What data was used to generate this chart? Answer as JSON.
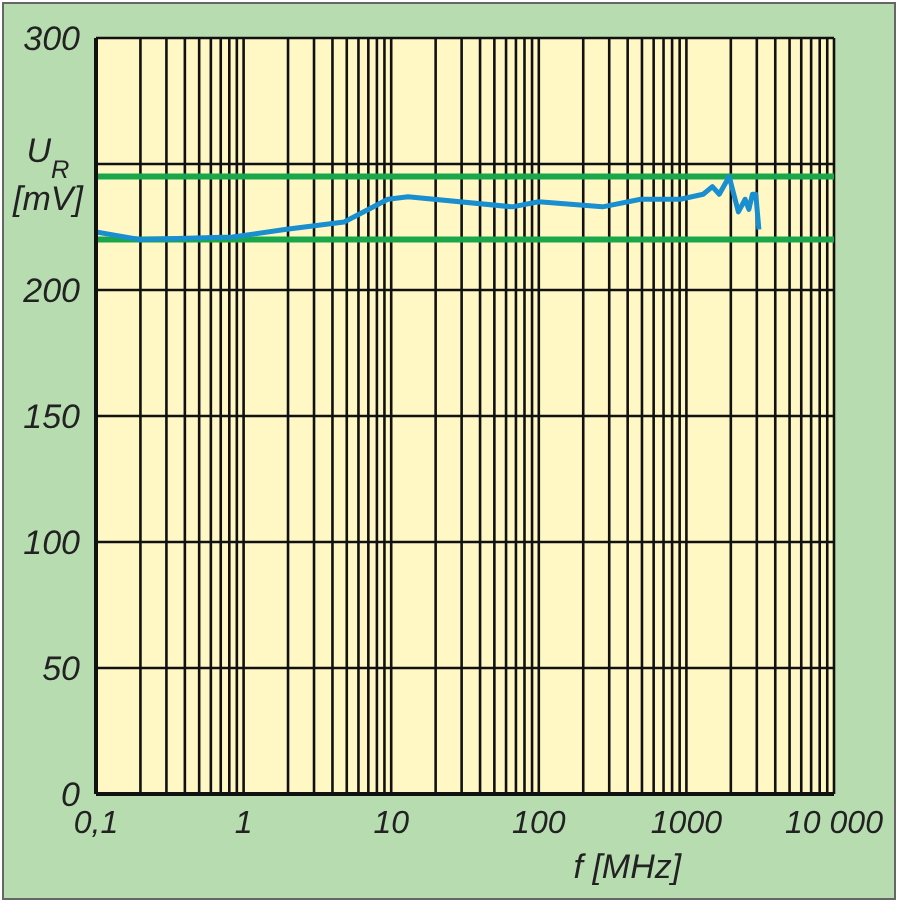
{
  "chart_data": {
    "type": "line",
    "xlabel": "f [MHz]",
    "ylabel": "U$_{R}$ [mV]",
    "log": "x",
    "xlim": [
      0.1,
      10000
    ],
    "xticks": [
      {
        "value": 0.1,
        "label": "0,1"
      },
      {
        "value": 0.2,
        "label": null
      },
      {
        "value": 0.3,
        "label": null
      },
      {
        "value": 0.4,
        "label": null
      },
      {
        "value": 0.5,
        "label": null
      },
      {
        "value": 0.6,
        "label": null
      },
      {
        "value": 0.7,
        "label": null
      },
      {
        "value": 0.8,
        "label": null
      },
      {
        "value": 0.9,
        "label": null
      },
      1,
      {
        "value": 2,
        "label": null
      },
      {
        "value": 3,
        "label": null
      },
      {
        "value": 4,
        "label": null
      },
      {
        "value": 5,
        "label": null
      },
      {
        "value": 6,
        "label": null
      },
      {
        "value": 7,
        "label": null
      },
      {
        "value": 8,
        "label": null
      },
      {
        "value": 9,
        "label": null
      },
      10,
      {
        "value": 20,
        "label": null
      },
      {
        "value": 30,
        "label": null
      },
      {
        "value": 40,
        "label": null
      },
      {
        "value": 50,
        "label": null
      },
      {
        "value": 60,
        "label": null
      },
      {
        "value": 70,
        "label": null
      },
      {
        "value": 80,
        "label": null
      },
      {
        "value": 90,
        "label": null
      },
      100,
      {
        "value": 200,
        "label": null
      },
      {
        "value": 300,
        "label": null
      },
      {
        "value": 400,
        "label": null
      },
      {
        "value": 500,
        "label": null
      },
      {
        "value": 600,
        "label": null
      },
      {
        "value": 700,
        "label": null
      },
      {
        "value": 800,
        "label": null
      },
      {
        "value": 900,
        "label": null
      },
      1000,
      {
        "value": 2000,
        "label": null
      },
      {
        "value": 3000,
        "label": null
      },
      {
        "value": 4000,
        "label": null
      },
      {
        "value": 5000,
        "label": null
      },
      {
        "value": 6000,
        "label": null
      },
      {
        "value": 7000,
        "label": null
      },
      {
        "value": 8000,
        "label": null
      },
      {
        "value": 9000,
        "label": null
      },
      {
        "value": 10000,
        "label": "10 000"
      }
    ],
    "ylim": [
      0,
      300
    ],
    "yticks": [
      0,
      50,
      100,
      150,
      200,
      {
        "value": 250,
        "label": null
      },
      300
    ],
    "grid": true,
    "ref_lines": [
      {
        "axis": "y",
        "value": 245,
        "color": "#1aa64a"
      },
      {
        "axis": "y",
        "value": 220,
        "color": "#1aa64a"
      }
    ],
    "series": [
      {
        "color": "#1a8fd0",
        "x": [
          0.1,
          0.2,
          0.84,
          1.9,
          4.8,
          9.5,
          13,
          66,
          100,
          270,
          490,
          910,
          1300,
          1500,
          1670,
          1950,
          2250,
          2500,
          2650,
          2800,
          2950,
          3100
        ],
        "values": [
          223,
          220,
          221,
          224,
          227,
          236,
          237,
          233,
          235,
          233,
          236,
          236,
          238,
          241,
          238,
          245,
          231,
          236,
          232,
          238,
          238,
          224
        ]
      }
    ]
  }
}
